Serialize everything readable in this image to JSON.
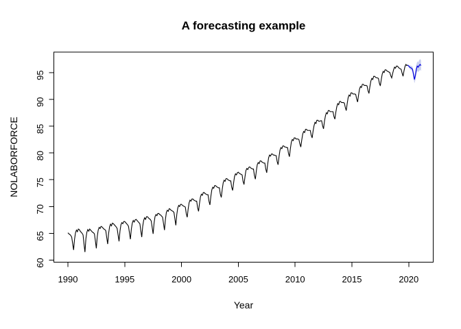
{
  "chart_data": {
    "type": "line",
    "title": "A forecasting example",
    "xlabel": "Year",
    "ylabel": "NOLABORFORCE",
    "x_ticks": [
      1990,
      1995,
      2000,
      2005,
      2010,
      2015,
      2020
    ],
    "y_ticks": [
      60,
      65,
      70,
      75,
      80,
      85,
      90,
      95
    ],
    "xlim": [
      1988.8,
      2022.2
    ],
    "ylim": [
      59.6,
      98.8
    ],
    "grid": false,
    "legend": "none",
    "colors": {
      "observed_line": "#000000",
      "forecast_line": "#0000dd",
      "forecast_band": "#aab3e8",
      "box": "#000000"
    },
    "observed": {
      "name": "NOLABORFORCE",
      "start_year": 1990,
      "frequency": 12,
      "values": [
        65.1,
        64.9,
        64.8,
        64.6,
        64.3,
        63.1,
        61.9,
        63.9,
        65.1,
        65.6,
        65.3,
        65.8,
        65.7,
        65.4,
        65.2,
        65.0,
        64.7,
        63.0,
        61.5,
        64.0,
        65.2,
        65.7,
        65.4,
        65.8,
        65.6,
        65.4,
        65.2,
        65.1,
        64.9,
        63.6,
        62.2,
        64.4,
        65.6,
        66.1,
        65.9,
        66.3,
        66.2,
        66.0,
        65.8,
        65.7,
        65.5,
        64.2,
        63.0,
        65.0,
        66.2,
        66.7,
        66.4,
        66.9,
        66.8,
        66.6,
        66.4,
        66.2,
        65.9,
        64.7,
        63.5,
        65.4,
        66.6,
        67.0,
        66.8,
        67.2,
        67.2,
        67.0,
        66.8,
        66.6,
        66.3,
        65.1,
        63.9,
        65.8,
        66.9,
        67.4,
        67.1,
        67.5,
        67.6,
        67.4,
        67.2,
        67.0,
        66.8,
        65.5,
        64.3,
        66.3,
        67.4,
        67.9,
        67.6,
        68.1,
        68.1,
        67.9,
        67.7,
        67.6,
        67.3,
        66.1,
        64.9,
        66.9,
        68.1,
        68.5,
        68.3,
        68.7,
        68.7,
        68.5,
        68.4,
        68.2,
        68.0,
        66.8,
        65.6,
        67.6,
        68.9,
        69.3,
        69.1,
        69.6,
        69.5,
        69.3,
        69.2,
        69.1,
        68.9,
        67.7,
        66.5,
        68.5,
        69.7,
        70.2,
        70.0,
        70.4,
        70.4,
        70.2,
        70.1,
        70.0,
        69.9,
        68.7,
        68.0,
        69.5,
        70.7,
        71.2,
        71.0,
        71.4,
        71.4,
        71.2,
        71.1,
        71.0,
        71.0,
        69.8,
        69.1,
        70.6,
        71.8,
        72.3,
        72.1,
        72.6,
        72.6,
        72.4,
        72.3,
        72.2,
        72.2,
        71.0,
        70.3,
        71.9,
        73.1,
        73.6,
        73.4,
        73.9,
        73.9,
        73.7,
        73.6,
        73.5,
        73.5,
        72.3,
        71.7,
        73.2,
        74.4,
        74.9,
        74.7,
        75.2,
        75.2,
        75.0,
        74.9,
        74.8,
        74.8,
        73.6,
        73.0,
        74.4,
        75.6,
        76.1,
        75.9,
        76.3,
        76.4,
        76.2,
        76.1,
        76.0,
        75.9,
        74.7,
        74.1,
        75.5,
        76.7,
        77.1,
        76.9,
        77.3,
        77.4,
        77.2,
        77.1,
        77.0,
        77.0,
        75.8,
        75.1,
        76.6,
        77.8,
        78.2,
        78.0,
        78.5,
        78.5,
        78.3,
        78.2,
        78.1,
        78.1,
        77.0,
        76.3,
        77.9,
        79.1,
        79.6,
        79.4,
        79.8,
        79.8,
        79.6,
        79.6,
        79.5,
        79.5,
        78.4,
        77.8,
        79.3,
        80.5,
        81.0,
        80.8,
        81.3,
        81.3,
        81.1,
        81.1,
        81.0,
        81.0,
        79.9,
        79.3,
        80.8,
        82.0,
        82.5,
        82.3,
        82.8,
        82.8,
        82.6,
        82.6,
        82.6,
        82.5,
        81.7,
        81.1,
        82.4,
        83.5,
        84.0,
        83.8,
        84.4,
        84.4,
        84.2,
        84.2,
        84.2,
        84.2,
        83.3,
        82.8,
        84.1,
        85.1,
        85.7,
        85.5,
        86.1,
        86.1,
        85.9,
        85.9,
        86.0,
        86.0,
        85.1,
        84.5,
        85.9,
        86.9,
        87.5,
        87.3,
        87.9,
        87.9,
        87.7,
        87.7,
        87.7,
        87.7,
        86.8,
        86.3,
        87.6,
        88.6,
        89.2,
        89.0,
        89.6,
        89.6,
        89.4,
        89.4,
        89.4,
        89.3,
        88.5,
        87.9,
        89.2,
        90.3,
        90.8,
        90.6,
        91.2,
        91.2,
        91.0,
        91.0,
        91.0,
        90.9,
        90.1,
        89.5,
        90.8,
        91.9,
        92.4,
        92.2,
        92.8,
        92.8,
        92.6,
        92.6,
        92.6,
        92.5,
        91.6,
        91.1,
        92.4,
        93.4,
        93.9,
        93.7,
        94.3,
        94.3,
        94.1,
        94.0,
        94.0,
        93.9,
        93.0,
        92.5,
        93.7,
        94.7,
        95.2,
        95.0,
        95.5,
        95.5,
        95.3,
        95.2,
        95.1,
        95.0,
        94.4,
        94.0,
        94.8,
        95.5,
        96.0,
        95.8,
        96.2,
        96.2,
        96.0,
        95.8,
        95.7,
        95.6,
        94.9,
        94.3,
        95.3,
        96.1,
        96.5,
        96.3,
        96.4
      ]
    },
    "forecast": {
      "name": "forecast",
      "start_year": 2020,
      "frequency": 12,
      "mean": [
        96.2,
        96.0,
        95.9,
        95.8,
        95.6,
        94.7,
        93.7,
        94.4,
        95.6,
        96.2,
        96.0,
        96.3,
        96.5,
        96.3
      ],
      "lower": [
        96.0,
        95.7,
        95.5,
        95.4,
        95.1,
        94.1,
        93.0,
        93.6,
        94.8,
        95.3,
        95.1,
        95.3,
        95.5,
        95.3
      ],
      "upper": [
        96.4,
        96.3,
        96.3,
        96.2,
        96.1,
        95.3,
        94.4,
        95.2,
        96.4,
        97.1,
        96.9,
        97.3,
        97.5,
        97.3
      ]
    }
  }
}
